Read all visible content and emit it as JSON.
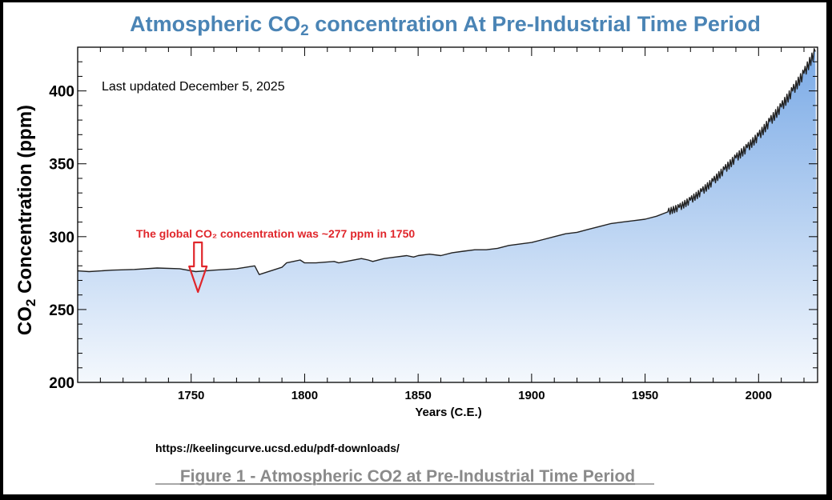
{
  "chart_data": {
    "type": "area",
    "title": "Atmospheric CO",
    "title_sub": "2",
    "title_rest": " concentration At Pre-Industrial Time Period",
    "ylabel_main": "CO",
    "ylabel_sub": "2",
    "ylabel_rest": " Concentration (ppm)",
    "xlabel": "Years (C.E.)",
    "xlim": [
      1700,
      2026
    ],
    "ylim": [
      200,
      430
    ],
    "x_ticks": [
      1750,
      1800,
      1850,
      1900,
      1950,
      2000
    ],
    "y_ticks": [
      200,
      250,
      300,
      350,
      400
    ],
    "x_tick_labels": [
      "1750",
      "1800",
      "1850",
      "1900",
      "1950",
      "2000"
    ],
    "y_tick_labels": [
      "200",
      "250",
      "300",
      "350",
      "400"
    ],
    "updated_note": "Last updated December 5, 2025",
    "annotation": "The global CO₂ concentration was ~277 ppm in 1750",
    "annotation_year": 1753,
    "series": [
      {
        "name": "CO2 concentration",
        "x": [
          1700,
          1705,
          1715,
          1725,
          1735,
          1745,
          1752,
          1760,
          1770,
          1778,
          1780,
          1790,
          1792,
          1795,
          1798,
          1800,
          1805,
          1813,
          1815,
          1825,
          1828,
          1830,
          1835,
          1840,
          1845,
          1848,
          1850,
          1855,
          1860,
          1865,
          1870,
          1875,
          1880,
          1885,
          1890,
          1895,
          1900,
          1905,
          1910,
          1915,
          1920,
          1925,
          1930,
          1935,
          1940,
          1945,
          1950,
          1955,
          1960,
          1965,
          1970,
          1975,
          1980,
          1985,
          1990,
          1995,
          2000,
          2005,
          2010,
          2015,
          2020,
          2025
        ],
        "y": [
          276.5,
          276,
          277,
          277.5,
          278.5,
          278,
          276,
          277,
          278,
          280,
          274,
          279,
          282,
          283,
          284,
          282,
          282,
          283,
          282,
          285,
          284,
          283,
          285,
          286,
          287,
          286,
          287,
          288,
          287,
          289,
          290,
          291,
          291,
          292,
          294,
          295,
          296,
          298,
          300,
          302,
          303,
          305,
          307,
          309,
          310,
          311,
          312,
          314,
          317,
          320,
          325,
          331,
          338,
          346,
          354,
          361,
          369,
          379,
          389,
          400,
          412,
          427
        ]
      }
    ]
  },
  "source_url": "https://keelingcurve.ucsd.edu/pdf-downloads/",
  "caption": "Figure 1 - Atmospheric CO2 at Pre-Industrial Time Period",
  "colors": {
    "line": "#222222",
    "fill_top": "#7aaae6",
    "fill_bottom": "#f4f8fd",
    "annotation": "#e0262b",
    "title": "#4a84b5"
  }
}
